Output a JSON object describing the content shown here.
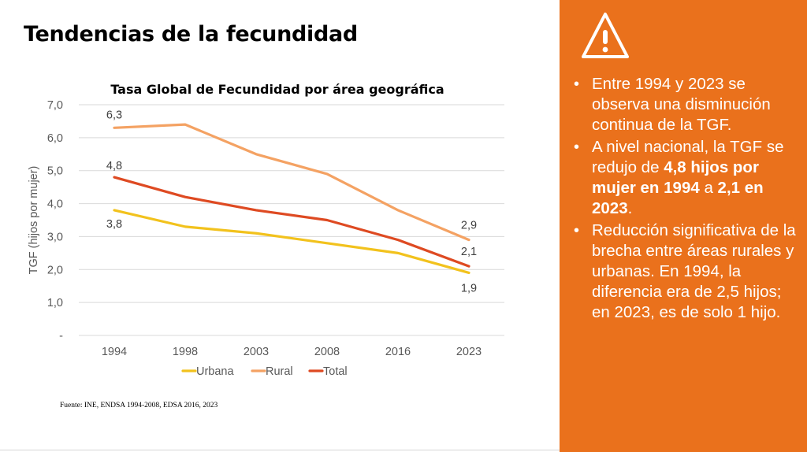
{
  "slide": {
    "title": "Tendencias de la fecundidad",
    "source": "Fuente: INE, ENDSA 1994-2008, EDSA 2016, 2023"
  },
  "chart_data": {
    "type": "line",
    "title": "Tasa Global de Fecundidad por área geográfica",
    "ylabel": "TGF (hijos por mujer)",
    "xlabel": "",
    "categories": [
      "1994",
      "1998",
      "2003",
      "2008",
      "2016",
      "2023"
    ],
    "ylim": [
      0,
      7
    ],
    "yticks": [
      "-",
      "1,0",
      "2,0",
      "3,0",
      "4,0",
      "5,0",
      "6,0",
      "7,0"
    ],
    "grid": true,
    "legend_position": "bottom",
    "series": [
      {
        "name": "Urbana",
        "color": "#f2c21d",
        "values": [
          3.8,
          3.3,
          3.1,
          2.8,
          2.5,
          1.9
        ]
      },
      {
        "name": "Rural",
        "color": "#f4a263",
        "values": [
          6.3,
          6.4,
          5.5,
          4.9,
          3.8,
          2.9
        ]
      },
      {
        "name": "Total",
        "color": "#de4a22",
        "values": [
          4.8,
          4.2,
          3.8,
          3.5,
          2.9,
          2.1
        ]
      }
    ],
    "data_labels": [
      {
        "series": "Rural",
        "category": "1994",
        "text": "6,3"
      },
      {
        "series": "Total",
        "category": "1994",
        "text": "4,8"
      },
      {
        "series": "Urbana",
        "category": "1994",
        "text": "3,8"
      },
      {
        "series": "Rural",
        "category": "2023",
        "text": "2,9"
      },
      {
        "series": "Total",
        "category": "2023",
        "text": "2,1"
      },
      {
        "series": "Urbana",
        "category": "2023",
        "text": "1,9"
      }
    ]
  },
  "panel": {
    "background": "#ea711c",
    "icon": "warning-icon",
    "bullets": [
      [
        {
          "t": "Entre 1994 y 2023 se observa una disminución continua de la TGF.",
          "b": false
        }
      ],
      [
        {
          "t": "A nivel nacional, la TGF se redujo de ",
          "b": false
        },
        {
          "t": "4,8 hijos por mujer en 1994",
          "b": true
        },
        {
          "t": " a ",
          "b": false
        },
        {
          "t": "2,1 en 2023",
          "b": true
        },
        {
          "t": ".",
          "b": false
        }
      ],
      [
        {
          "t": "Reducción significativa de la brecha entre áreas rurales y urbanas. En 1994, la diferencia era de 2,5 hijos; en 2023, es de solo 1 hijo.",
          "b": false
        }
      ]
    ]
  }
}
